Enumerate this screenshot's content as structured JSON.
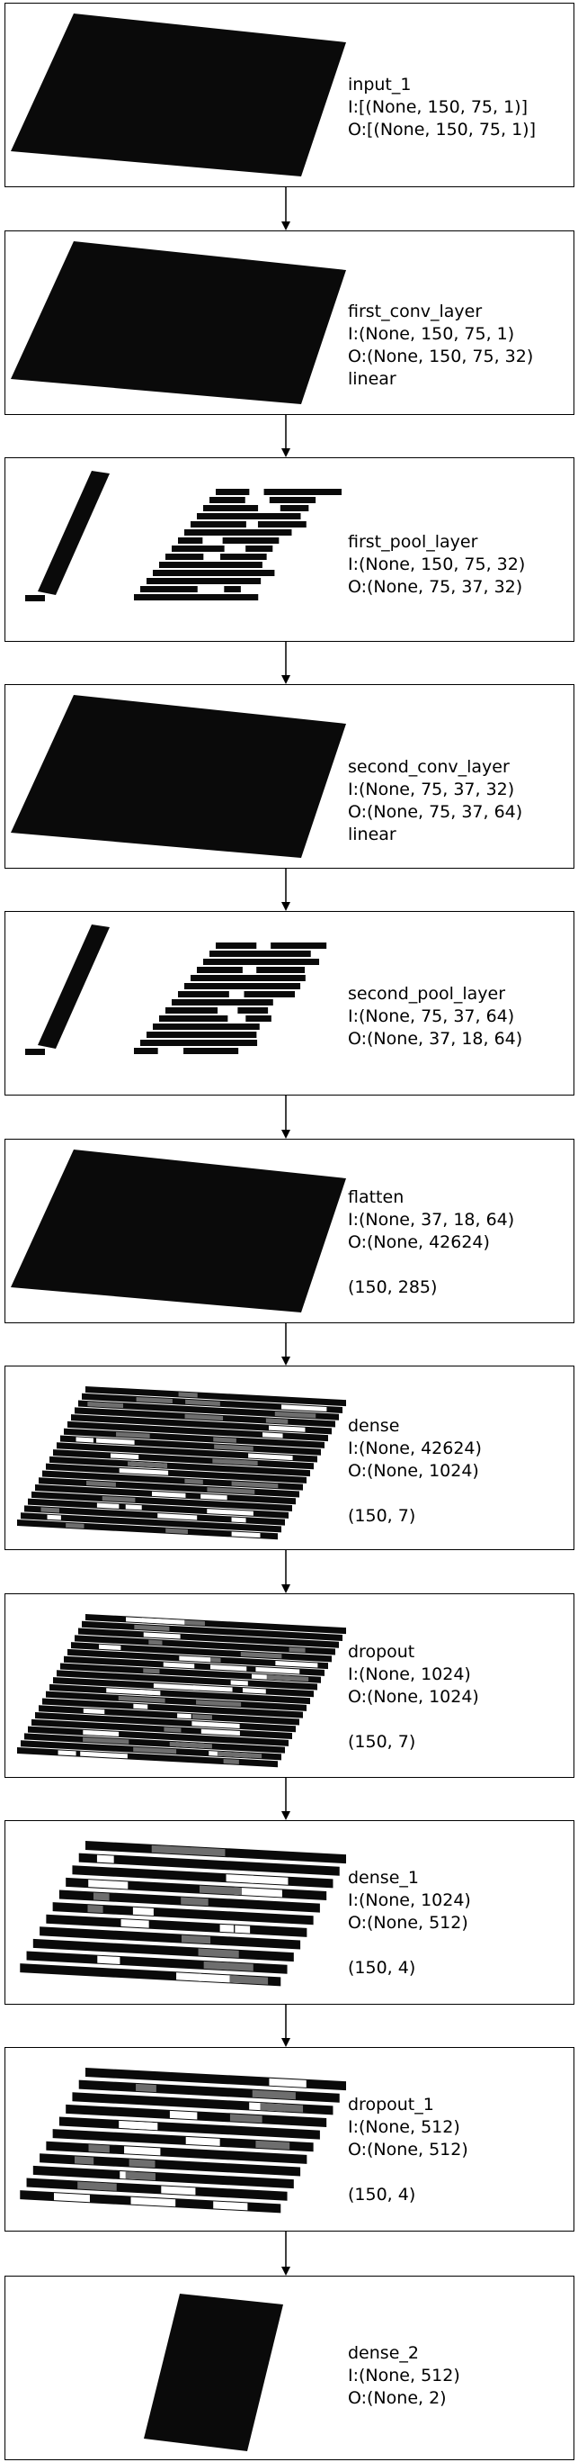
{
  "layers": [
    {
      "name": "input_1",
      "lines": [
        "input_1",
        "I:[(None, 150, 75, 1)]",
        "O:[(None, 150, 75, 1)]"
      ],
      "viz": "solid"
    },
    {
      "name": "first_conv_layer",
      "lines": [
        "first_conv_layer",
        "I:(None, 150, 75, 1)",
        "O:(None, 150, 75, 32)",
        "linear"
      ],
      "viz": "solid"
    },
    {
      "name": "first_pool_layer",
      "lines": [
        "first_pool_layer",
        "I:(None, 150, 75, 32)",
        "O:(None, 75, 37, 32)"
      ],
      "viz": "pool"
    },
    {
      "name": "second_conv_layer",
      "lines": [
        "second_conv_layer",
        "I:(None, 75, 37, 32)",
        "O:(None, 75, 37, 64)",
        "linear"
      ],
      "viz": "solid"
    },
    {
      "name": "second_pool_layer",
      "lines": [
        "second_pool_layer",
        "I:(None, 75, 37, 64)",
        "O:(None, 37, 18, 64)"
      ],
      "viz": "pool"
    },
    {
      "name": "flatten",
      "lines": [
        "flatten",
        "I:(None, 37, 18, 64)",
        "O:(None, 42624)",
        "",
        "(150, 285)"
      ],
      "viz": "solid"
    },
    {
      "name": "dense",
      "lines": [
        "dense",
        "I:(None, 42624)",
        "O:(None, 1024)",
        "",
        "(150, 7)"
      ],
      "viz": "stripes-dense"
    },
    {
      "name": "dropout",
      "lines": [
        "dropout",
        "I:(None, 1024)",
        "O:(None, 1024)",
        "",
        "(150, 7)"
      ],
      "viz": "stripes-dense"
    },
    {
      "name": "dense_1",
      "lines": [
        "dense_1",
        "I:(None, 1024)",
        "O:(None, 512)",
        "",
        "(150, 4)"
      ],
      "viz": "stripes-sparse"
    },
    {
      "name": "dropout_1",
      "lines": [
        "dropout_1",
        "I:(None, 512)",
        "O:(None, 512)",
        "",
        "(150, 4)"
      ],
      "viz": "stripes-sparse"
    },
    {
      "name": "dense_2",
      "lines": [
        "dense_2",
        "I:(None, 512)",
        "O:(None, 2)"
      ],
      "viz": "narrow"
    }
  ],
  "colors": {
    "box_border": "#000000",
    "feature_map": "#0a0a0a",
    "stripe_light": "#ffffff",
    "stripe_mid": "#6e6e6e"
  }
}
